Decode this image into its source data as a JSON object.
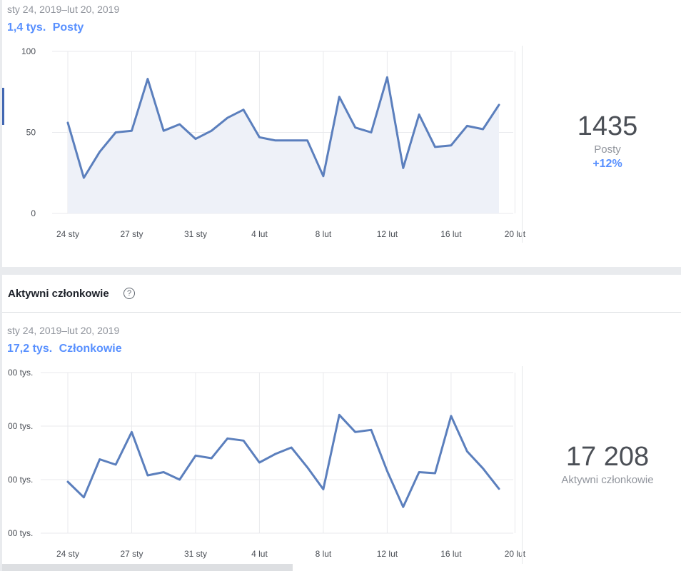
{
  "posts_section": {
    "date_range": "sty 24, 2019–lut 20, 2019",
    "summary_value": "1,4 tys.",
    "summary_label": "Posty",
    "kpi": {
      "value": "1435",
      "label": "Posty",
      "change": "+12%"
    }
  },
  "members_section": {
    "title": "Aktywni członkowie",
    "help_glyph": "?",
    "date_range": "sty 24, 2019–lut 20, 2019",
    "summary_value": "17,2 tys.",
    "summary_label": "Członkowie",
    "kpi": {
      "value": "17 208",
      "label": "Aktywni członkowie"
    }
  },
  "colors": {
    "line": "#5b7fbd",
    "area": "#eef1f8",
    "accent": "#4267b2",
    "blue_text": "#5890ff"
  },
  "chart_data": [
    {
      "type": "area",
      "title": "",
      "xlabel": "",
      "ylabel": "",
      "x_tick_labels": [
        "24 sty",
        "27 sty",
        "31 sty",
        "4 lut",
        "8 lut",
        "12 lut",
        "16 lut",
        "20 lut"
      ],
      "x_tick_index": [
        0,
        4,
        8,
        12,
        16,
        20,
        24,
        28
      ],
      "y_tick_labels": [
        "100",
        "50",
        "0"
      ],
      "y_ticks": [
        100,
        50,
        0
      ],
      "ylim": [
        0,
        100
      ],
      "grid": true,
      "series": [
        {
          "values": [
            56,
            22,
            38,
            50,
            51,
            83,
            51,
            55,
            46,
            51,
            59,
            64,
            47,
            45,
            45,
            45,
            23,
            72,
            53,
            50,
            84,
            28,
            61,
            41,
            42,
            54,
            52,
            67
          ]
        }
      ]
    },
    {
      "type": "line",
      "title": "",
      "xlabel": "",
      "ylabel": "",
      "x_tick_labels": [
        "24 sty",
        "27 sty",
        "31 sty",
        "4 lut",
        "8 lut",
        "12 lut",
        "16 lut",
        "20 lut"
      ],
      "x_tick_index": [
        0,
        4,
        8,
        12,
        16,
        20,
        24,
        28
      ],
      "y_tick_labels": [
        "00 tys.",
        "00 tys.",
        "00 tys.",
        "00 tys."
      ],
      "y_ticks": [
        3,
        2,
        1,
        0
      ],
      "ylim": [
        0,
        3
      ],
      "grid": true,
      "series": [
        {
          "values": [
            0.96,
            0.67,
            1.38,
            1.28,
            1.89,
            1.08,
            1.14,
            1.0,
            1.45,
            1.4,
            1.77,
            1.73,
            1.32,
            1.48,
            1.6,
            1.23,
            0.82,
            2.21,
            1.89,
            1.93,
            1.16,
            0.49,
            1.14,
            1.12,
            2.19,
            1.53,
            1.21,
            0.83
          ]
        }
      ]
    }
  ]
}
